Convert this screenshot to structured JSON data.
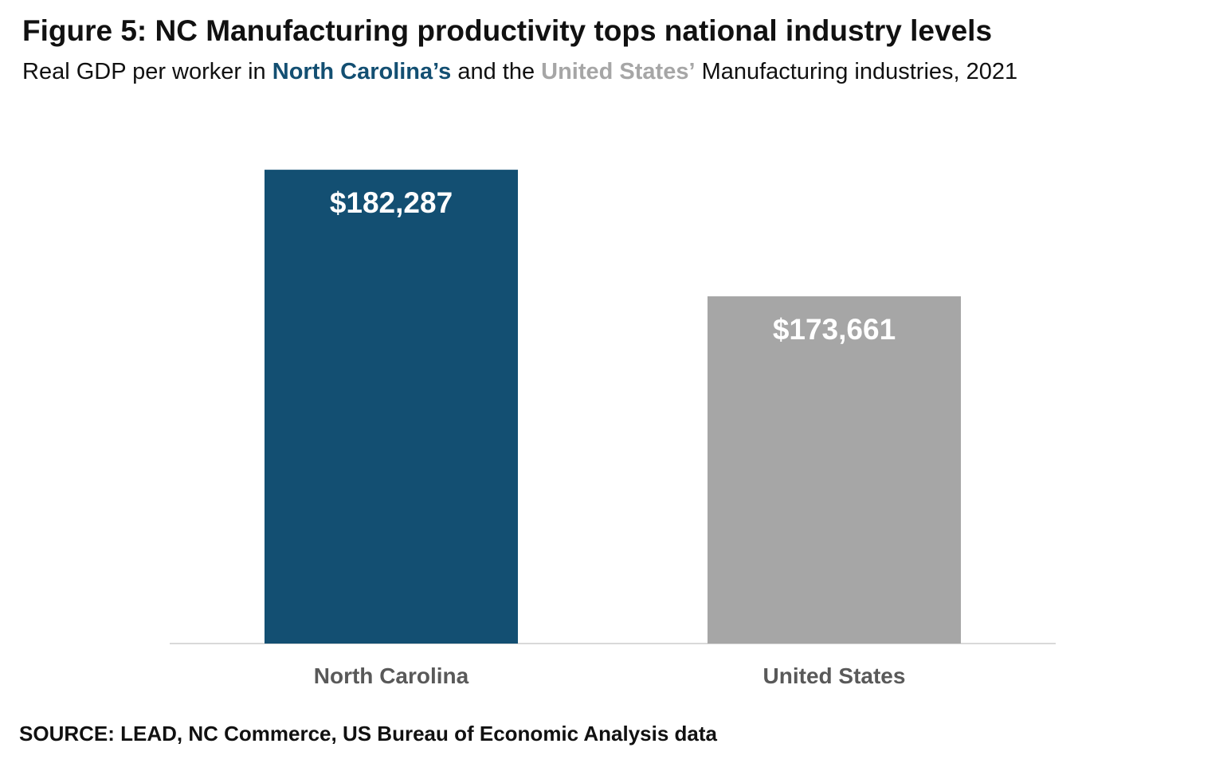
{
  "chart_data": {
    "type": "bar",
    "title": "Figure 5: NC Manufacturing productivity tops national industry levels",
    "subtitle_parts": [
      "Real GDP per worker in ",
      "North Carolina’s",
      " and the ",
      "United States’",
      " Manufacturing industries, 2021"
    ],
    "subtitle_colors": [
      "#111111",
      "#134f72",
      "#111111",
      "#a6a6a6",
      "#111111"
    ],
    "categories": [
      "North Carolina",
      "United States"
    ],
    "values": [
      182287,
      173661
    ],
    "value_labels": [
      "$182,287",
      "$173,661"
    ],
    "colors": [
      "#134f72",
      "#a6a6a6"
    ],
    "ylim": [
      150000,
      190000
    ],
    "source": "SOURCE: LEAD, NC Commerce, US Bureau of Economic Analysis data"
  }
}
